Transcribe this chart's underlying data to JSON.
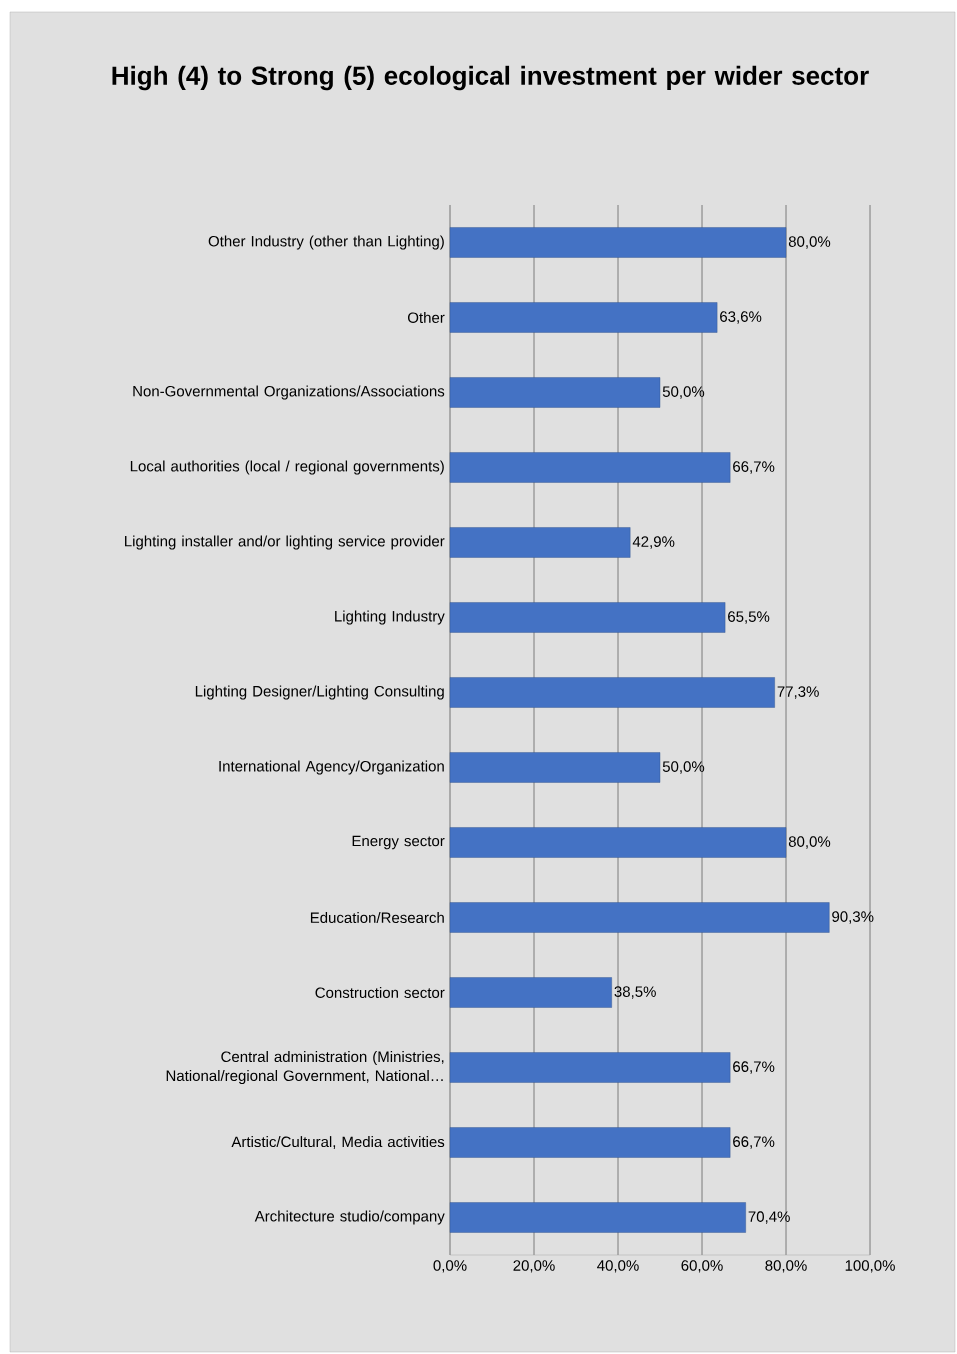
{
  "chart_data": {
    "type": "bar",
    "orientation": "horizontal",
    "title": "High (4) to Strong (5) ecological investment per wider sector",
    "categories": [
      "Other Industry (other than Lighting)",
      "Other",
      "Non-Governmental Organizations/Associations",
      "Local authorities (local / regional governments)",
      "Lighting installer and/or lighting service provider",
      "Lighting Industry",
      "Lighting Designer/Lighting Consulting",
      "International Agency/Organization",
      "Energy sector",
      "Education/Research",
      "Construction sector",
      "Central administration (Ministries, National/regional Government, National…",
      "Artistic/Cultural, Media activities",
      "Architecture studio/company"
    ],
    "values": [
      80.0,
      63.6,
      50.0,
      66.7,
      42.9,
      65.5,
      77.3,
      50.0,
      80.0,
      90.3,
      38.5,
      66.7,
      66.7,
      70.4
    ],
    "value_labels": [
      "80,0%",
      "63,6%",
      "50,0%",
      "66,7%",
      "42,9%",
      "65,5%",
      "77,3%",
      "50,0%",
      "80,0%",
      "90,3%",
      "38,5%",
      "66,7%",
      "66,7%",
      "70,4%"
    ],
    "color": "#4472c4",
    "xlim": [
      0,
      100
    ],
    "xticks": [
      {
        "value": 0,
        "label": "0,0%"
      },
      {
        "value": 20,
        "label": "20,0%"
      },
      {
        "value": 40,
        "label": "40,0%"
      },
      {
        "value": 60,
        "label": "60,0%"
      },
      {
        "value": 80,
        "label": "80,0%"
      },
      {
        "value": 100,
        "label": "100,0%"
      }
    ],
    "grid": "x"
  }
}
